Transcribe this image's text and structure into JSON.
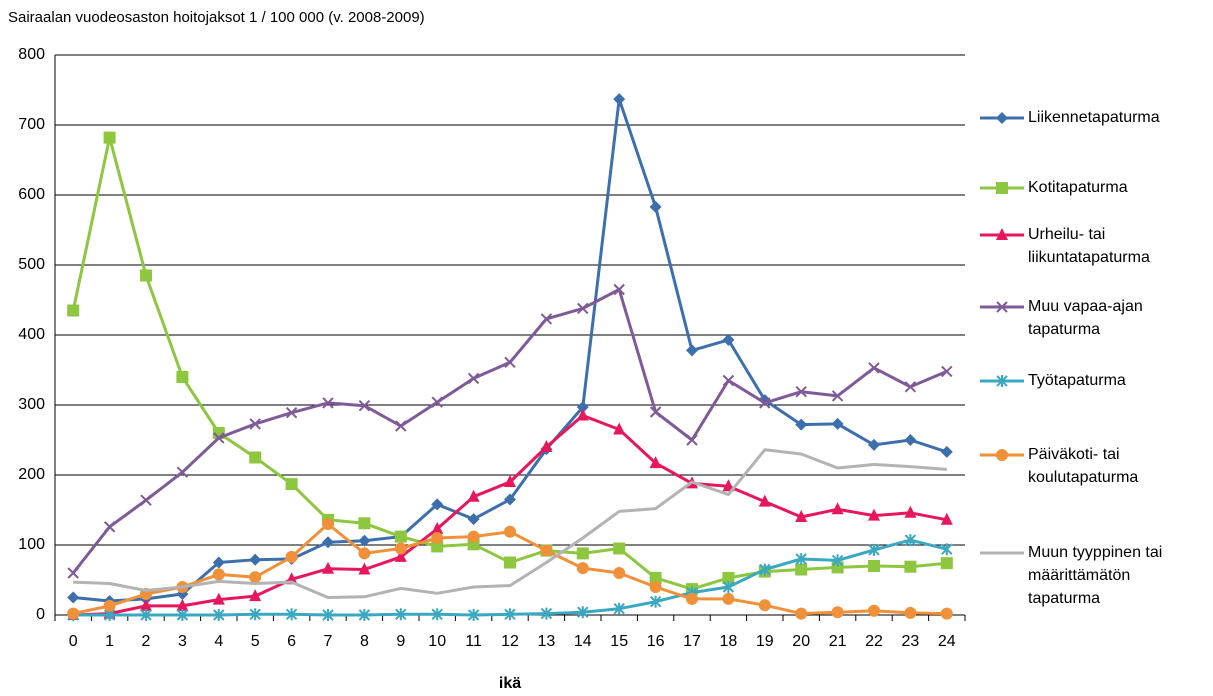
{
  "chart_data": {
    "type": "line",
    "title": "Sairaalan vuodeosaston hoitojaksot  1 / 100 000 (v. 2008-2009)",
    "x_label": "ikä",
    "categories": [
      "0",
      "1",
      "2",
      "3",
      "4",
      "5",
      "6",
      "7",
      "8",
      "9",
      "10",
      "11",
      "12",
      "13",
      "14",
      "15",
      "16",
      "17",
      "18",
      "19",
      "20",
      "21",
      "22",
      "23",
      "24"
    ],
    "ylim": [
      0,
      800
    ],
    "yticks": [
      0,
      100,
      200,
      300,
      400,
      500,
      600,
      700,
      800
    ],
    "grid": true,
    "series": [
      {
        "name": "Liikennetapaturma",
        "color": "#3d6fad",
        "marker": "diamond",
        "values": [
          25,
          20,
          23,
          30,
          75,
          79,
          80,
          104,
          106,
          112,
          158,
          137,
          165,
          237,
          297,
          737,
          583,
          378,
          393,
          307,
          272,
          273,
          243,
          250,
          233
        ]
      },
      {
        "name": "Kotitapaturma",
        "color": "#8dc63f",
        "marker": "square",
        "values": [
          435,
          682,
          485,
          340,
          260,
          225,
          187,
          136,
          131,
          112,
          98,
          101,
          75,
          92,
          88,
          95,
          53,
          37,
          53,
          62,
          65,
          68,
          70,
          69,
          74
        ]
      },
      {
        "name": "Urheilu- tai liikuntatapaturma",
        "color": "#e8175d",
        "marker": "triangle",
        "values": [
          0,
          2,
          13,
          13,
          22,
          27,
          51,
          66,
          65,
          83,
          123,
          169,
          190,
          240,
          285,
          265,
          217,
          188,
          184,
          162,
          140,
          151,
          142,
          146,
          136
        ]
      },
      {
        "name": "Muu vapaa-ajan tapaturma",
        "color": "#7f5a98",
        "marker": "cross",
        "values": [
          60,
          126,
          164,
          204,
          253,
          273,
          289,
          303,
          299,
          270,
          304,
          338,
          361,
          423,
          438,
          465,
          290,
          250,
          335,
          303,
          319,
          313,
          353,
          326,
          348
        ]
      },
      {
        "name": "Työtapaturma",
        "color": "#3aa8c1",
        "marker": "star",
        "values": [
          0,
          0,
          0,
          0,
          0,
          1,
          1,
          0,
          0,
          1,
          1,
          0,
          1,
          2,
          4,
          9,
          19,
          32,
          40,
          65,
          80,
          78,
          93,
          107,
          94
        ]
      },
      {
        "name": "Päiväkoti- tai koulutapaturma",
        "color": "#f0913a",
        "marker": "circle",
        "values": [
          2,
          13,
          30,
          40,
          58,
          54,
          83,
          130,
          88,
          95,
          110,
          112,
          119,
          92,
          67,
          60,
          40,
          23,
          23,
          14,
          2,
          4,
          6,
          3,
          2
        ]
      },
      {
        "name": "Muun tyyppinen tai määrittämätön tapaturma",
        "color": "#b3b3b3",
        "marker": "none",
        "values": [
          47,
          45,
          35,
          40,
          48,
          45,
          47,
          25,
          26,
          38,
          31,
          40,
          42,
          75,
          110,
          148,
          152,
          190,
          172,
          236,
          230,
          210,
          215,
          212,
          208
        ]
      }
    ]
  }
}
